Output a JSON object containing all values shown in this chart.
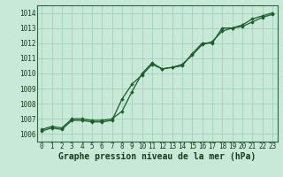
{
  "background_color": "#c8e8d8",
  "grid_color": "#99ccbb",
  "line_color": "#1a5c2a",
  "marker_color": "#1a5c2a",
  "xlabel": "Graphe pression niveau de la mer (hPa)",
  "ylim": [
    1005.5,
    1014.5
  ],
  "xlim": [
    -0.5,
    23.5
  ],
  "yticks": [
    1006,
    1007,
    1008,
    1009,
    1010,
    1011,
    1012,
    1013,
    1014
  ],
  "xticks": [
    0,
    1,
    2,
    3,
    4,
    5,
    6,
    7,
    8,
    9,
    10,
    11,
    12,
    13,
    14,
    15,
    16,
    17,
    18,
    19,
    20,
    21,
    22,
    23
  ],
  "line1_x": [
    0,
    1,
    2,
    3,
    4,
    5,
    6,
    7,
    8,
    9,
    10,
    11,
    12,
    13,
    14,
    15,
    16,
    17,
    18,
    19,
    20,
    21,
    22,
    23
  ],
  "line1_y": [
    1006.3,
    1006.5,
    1006.4,
    1007.0,
    1007.0,
    1006.9,
    1006.9,
    1007.0,
    1007.5,
    1008.8,
    1010.0,
    1010.7,
    1010.3,
    1010.4,
    1010.5,
    1011.3,
    1012.0,
    1012.0,
    1013.0,
    1013.0,
    1013.2,
    1013.6,
    1013.8,
    1014.0
  ],
  "line2_x": [
    0,
    1,
    2,
    3,
    4,
    5,
    6,
    7,
    8,
    9,
    10,
    11,
    12,
    13,
    14,
    15,
    16,
    17,
    18,
    19,
    20,
    21,
    22,
    23
  ],
  "line2_y": [
    1006.2,
    1006.4,
    1006.3,
    1006.9,
    1006.9,
    1006.8,
    1006.8,
    1006.9,
    1008.3,
    1009.3,
    1009.9,
    1010.6,
    1010.3,
    1010.4,
    1010.6,
    1011.2,
    1011.9,
    1012.1,
    1012.8,
    1013.0,
    1013.1,
    1013.4,
    1013.7,
    1013.9
  ],
  "title_fontsize": 7,
  "tick_fontsize": 5.5
}
